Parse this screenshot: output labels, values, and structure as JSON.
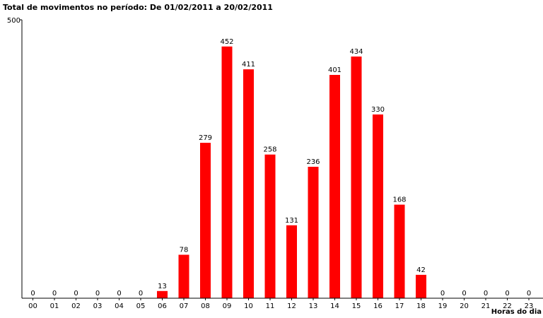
{
  "chart_data": {
    "type": "bar",
    "title": "Total de movimentos no período: De 01/02/2011 a 20/02/2011",
    "xlabel": "Horas do dia",
    "ylabel": "",
    "ylim": [
      0,
      500
    ],
    "yticks": [
      "500"
    ],
    "categories": [
      "00",
      "01",
      "02",
      "03",
      "04",
      "05",
      "06",
      "07",
      "08",
      "09",
      "10",
      "11",
      "12",
      "13",
      "14",
      "15",
      "16",
      "17",
      "18",
      "19",
      "20",
      "21",
      "22",
      "23"
    ],
    "values": [
      0,
      0,
      0,
      0,
      0,
      0,
      13,
      78,
      279,
      452,
      411,
      258,
      131,
      236,
      401,
      434,
      330,
      168,
      42,
      0,
      0,
      0,
      0,
      0
    ],
    "bar_color": "#ff0000",
    "axis_color": "#000000",
    "grid": false,
    "legend": "none"
  }
}
